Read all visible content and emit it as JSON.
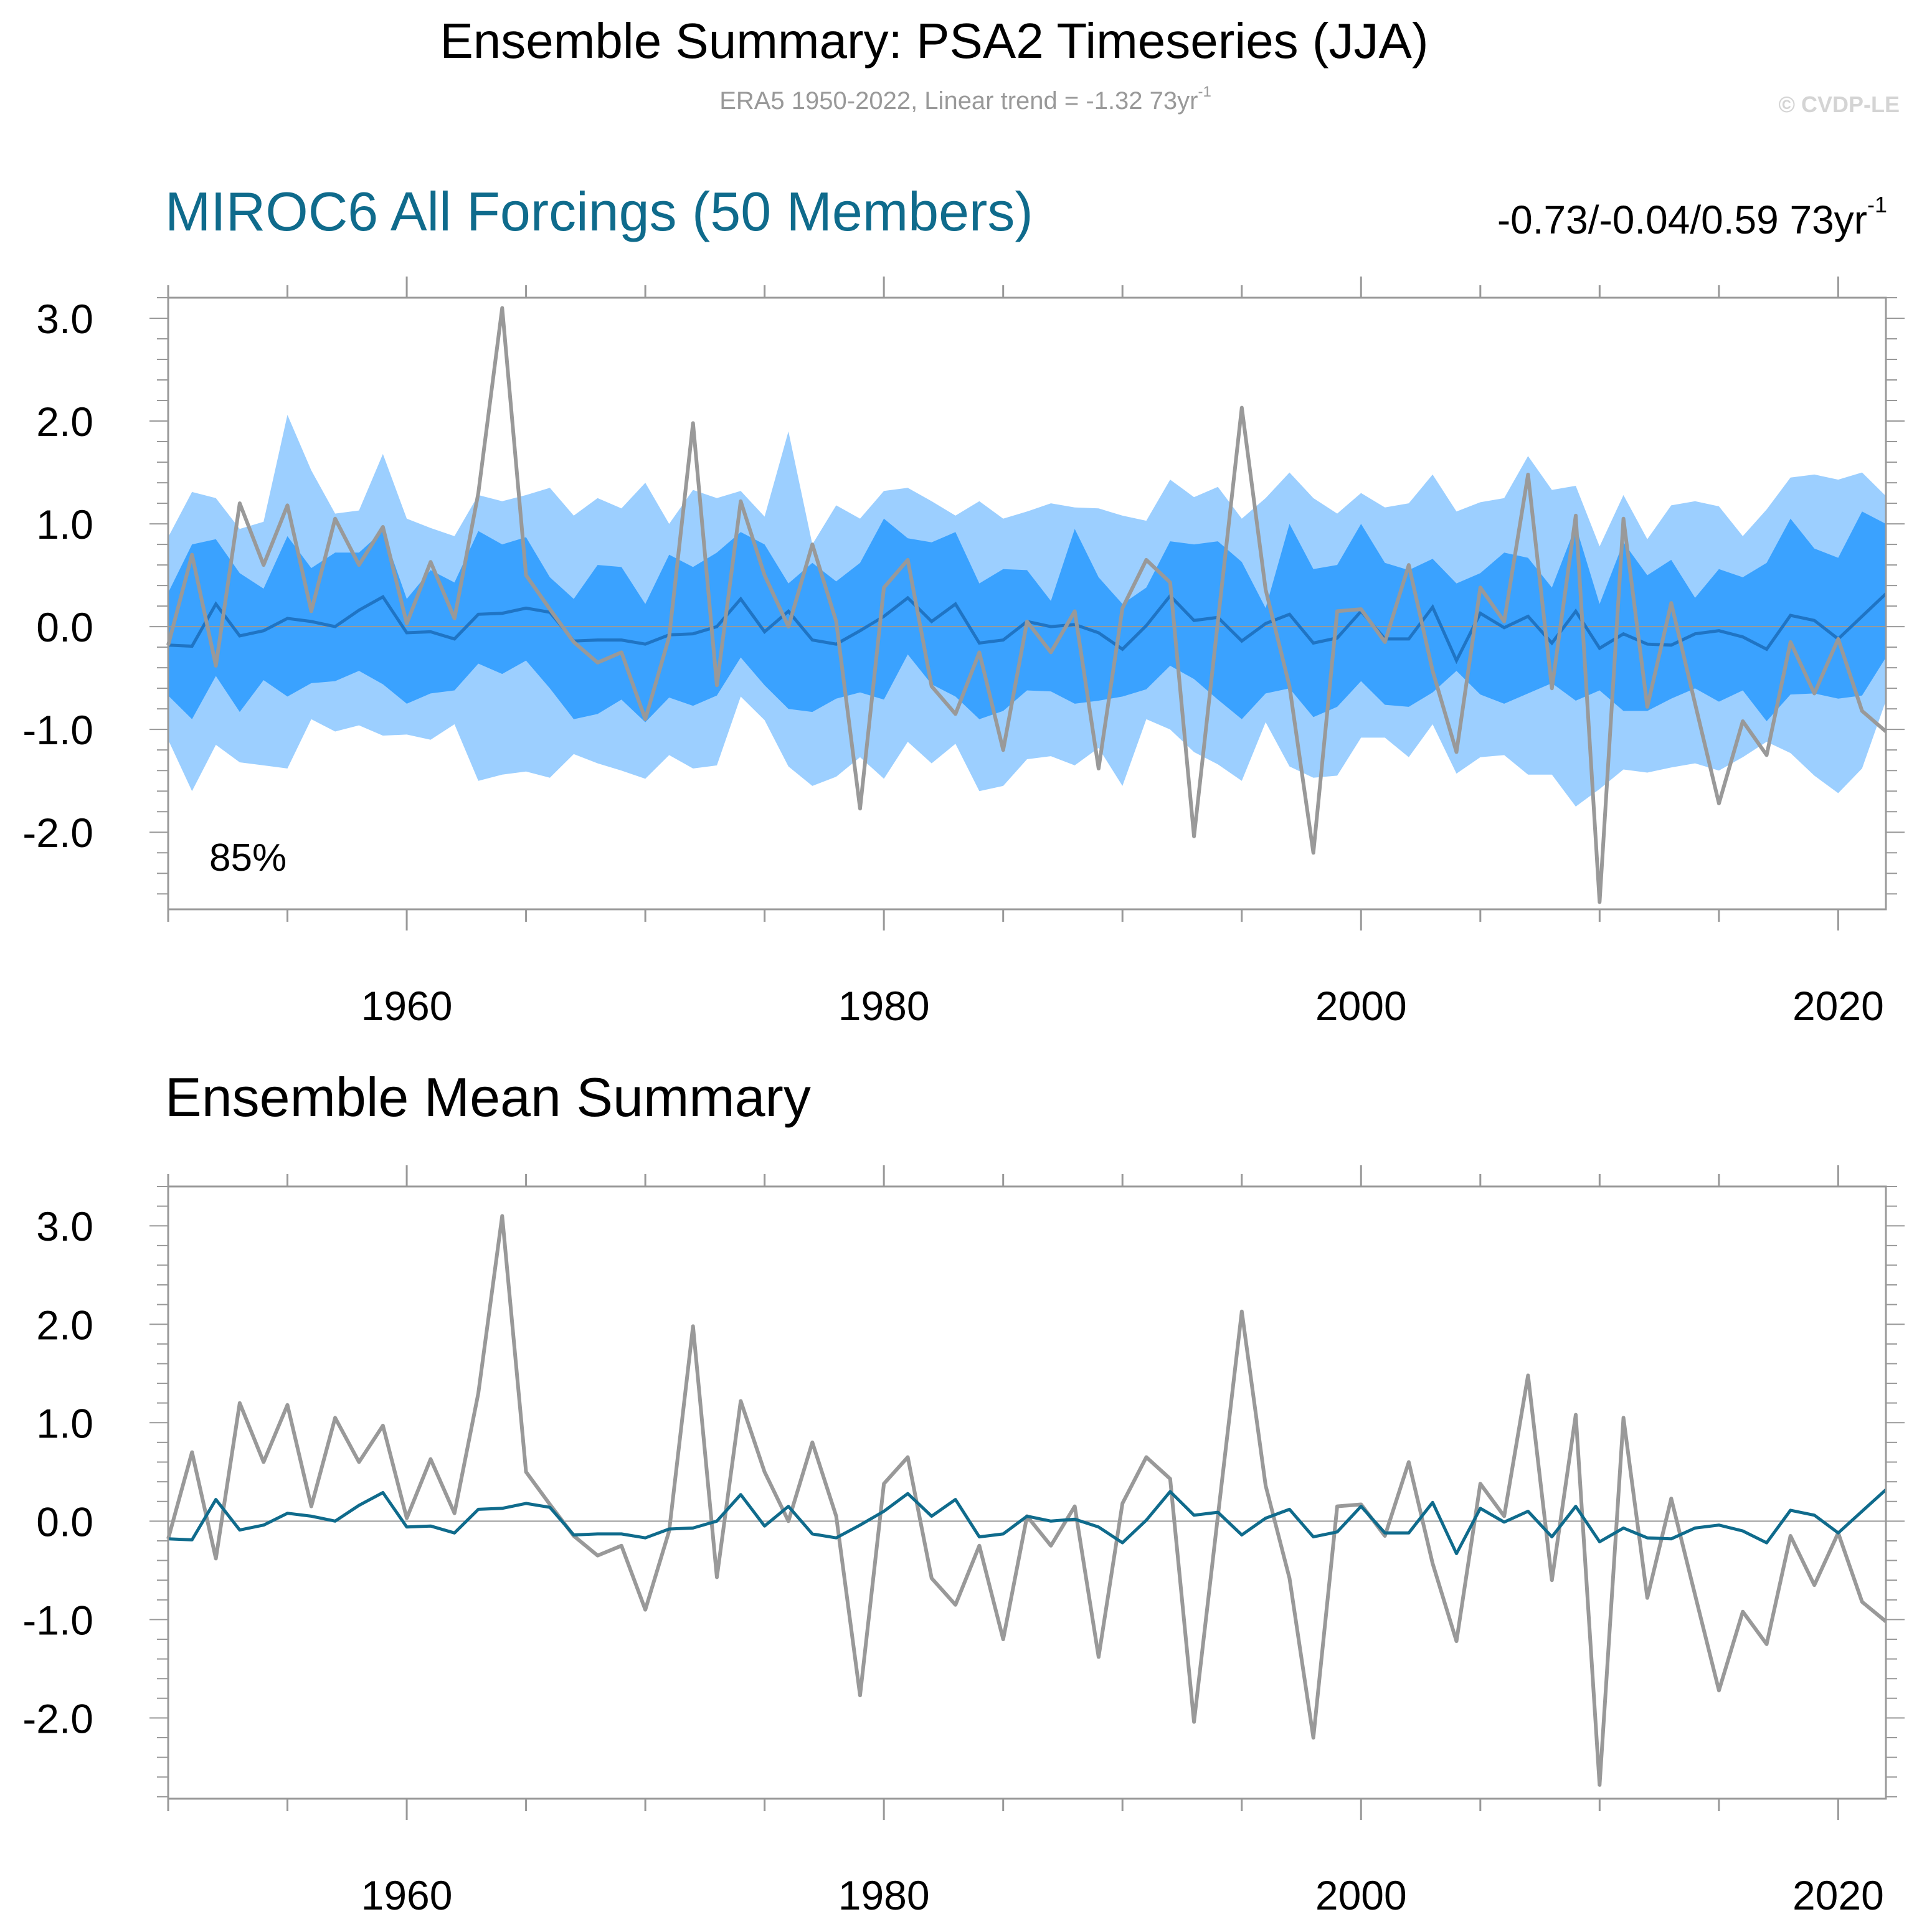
{
  "header": {
    "title": "Ensemble Summary: PSA2 Timeseries (JJA)",
    "subtitle_main": "ERA5 1950-2022, Linear trend = -1.32 73yr",
    "subtitle_sup": "-1",
    "copyright": "© CVDP-LE"
  },
  "panel_top": {
    "title": "MIROC6 All Forcings (50 Members)",
    "trend_main": "-0.73/-0.04/0.59 73yr",
    "trend_sup": "-1",
    "percent_label": "85%"
  },
  "panel_bottom": {
    "title": "Ensemble Mean Summary"
  },
  "colors": {
    "obs_line": "#999999",
    "mean_line_top": "#1f74c4",
    "mean_line_bottom": "#0f6b8c",
    "band_outer": "#9ccfff",
    "band_inner": "#3aa2ff",
    "zero_line": "#9a9a9a",
    "axis": "#999999"
  },
  "chart_data": [
    {
      "type": "line",
      "title": "MIROC6 All Forcings (50 Members)",
      "x_start": 1950,
      "x_end": 2022,
      "xlim": [
        1950,
        2022
      ],
      "ylim": [
        -2.75,
        3.2
      ],
      "x_ticks": [
        1960,
        1980,
        2000,
        2020
      ],
      "x_tick_labels": [
        "1960",
        "1980",
        "2000",
        "2020"
      ],
      "y_ticks": [
        3.0,
        2.0,
        1.0,
        0.0,
        -1.0,
        -2.0
      ],
      "y_tick_labels": [
        "3.0",
        "2.0",
        "1.0",
        "0.0",
        "-1.0",
        "-2.0"
      ],
      "series": [
        {
          "name": "ERA5",
          "values": [
            -0.18,
            0.7,
            -0.38,
            1.2,
            0.6,
            1.18,
            0.15,
            1.05,
            0.6,
            0.97,
            0.03,
            0.63,
            0.08,
            1.3,
            3.1,
            0.5,
            0.17,
            -0.15,
            -0.35,
            -0.25,
            -0.9,
            -0.1,
            1.98,
            -0.57,
            1.22,
            0.5,
            0.0,
            0.8,
            0.05,
            -1.77,
            0.38,
            0.65,
            -0.58,
            -0.85,
            -0.25,
            -1.2,
            0.05,
            -0.25,
            0.15,
            -1.38,
            0.18,
            0.65,
            0.43,
            -2.04,
            0.05,
            2.13,
            0.36,
            -0.58,
            -2.2,
            0.15,
            0.17,
            -0.15,
            0.6,
            -0.43,
            -1.22,
            0.38,
            0.05,
            1.48,
            -0.6,
            1.08,
            -2.68,
            1.05,
            -0.78,
            0.23,
            -0.75,
            -1.72,
            -0.92,
            -1.25,
            -0.15,
            -0.65,
            -0.12,
            -0.82,
            -1.02
          ]
        },
        {
          "name": "Ensemble mean",
          "values": [
            -0.18,
            -0.19,
            0.22,
            -0.09,
            -0.04,
            0.08,
            0.05,
            0.0,
            0.16,
            0.29,
            -0.06,
            -0.05,
            -0.12,
            0.12,
            0.13,
            0.18,
            0.14,
            -0.14,
            -0.13,
            -0.13,
            -0.17,
            -0.08,
            -0.07,
            0.0,
            0.27,
            -0.05,
            0.15,
            -0.13,
            -0.17,
            -0.04,
            0.1,
            0.28,
            0.05,
            0.22,
            -0.16,
            -0.13,
            0.05,
            0.0,
            0.02,
            -0.06,
            -0.22,
            0.01,
            0.3,
            0.06,
            0.09,
            -0.14,
            0.03,
            0.12,
            -0.16,
            -0.11,
            0.15,
            -0.12,
            -0.12,
            0.19,
            -0.33,
            0.13,
            -0.01,
            0.1,
            -0.16,
            0.15,
            -0.21,
            -0.07,
            -0.17,
            -0.18,
            -0.07,
            -0.04,
            -0.1,
            -0.22,
            0.11,
            0.06,
            -0.12,
            0.1,
            0.32
          ]
        }
      ],
      "bands": [
        {
          "name": "Ensemble range (outer)",
          "upper": [
            0.87,
            1.31,
            1.25,
            0.95,
            1.02,
            2.06,
            1.52,
            1.1,
            1.13,
            1.68,
            1.05,
            0.96,
            0.88,
            1.28,
            1.22,
            1.28,
            1.35,
            1.08,
            1.25,
            1.15,
            1.4,
            1.0,
            1.33,
            1.25,
            1.32,
            1.07,
            1.9,
            0.8,
            1.18,
            1.05,
            1.32,
            1.35,
            1.22,
            1.08,
            1.22,
            1.05,
            1.12,
            1.2,
            1.16,
            1.15,
            1.08,
            1.03,
            1.43,
            1.26,
            1.36,
            1.05,
            1.25,
            1.5,
            1.25,
            1.1,
            1.3,
            1.16,
            1.2,
            1.48,
            1.12,
            1.21,
            1.25,
            1.66,
            1.33,
            1.37,
            0.78,
            1.28,
            0.85,
            1.18,
            1.22,
            1.17,
            0.88,
            1.14,
            1.45,
            1.48,
            1.43,
            1.5,
            1.27
          ],
          "lower": [
            -1.1,
            -1.6,
            -1.15,
            -1.32,
            -1.35,
            -1.38,
            -0.9,
            -1.02,
            -0.96,
            -1.06,
            -1.05,
            -1.1,
            -0.95,
            -1.5,
            -1.44,
            -1.41,
            -1.47,
            -1.24,
            -1.33,
            -1.4,
            -1.48,
            -1.25,
            -1.38,
            -1.35,
            -0.68,
            -0.91,
            -1.36,
            -1.55,
            -1.46,
            -1.27,
            -1.48,
            -1.12,
            -1.33,
            -1.14,
            -1.6,
            -1.55,
            -1.29,
            -1.26,
            -1.35,
            -1.18,
            -1.55,
            -0.9,
            -1.0,
            -1.22,
            -1.34,
            -1.5,
            -0.93,
            -1.36,
            -1.47,
            -1.45,
            -1.08,
            -1.08,
            -1.27,
            -0.95,
            -1.43,
            -1.27,
            -1.25,
            -1.44,
            -1.44,
            -1.75,
            -1.58,
            -1.39,
            -1.42,
            -1.37,
            -1.33,
            -1.4,
            -1.27,
            -1.12,
            -1.23,
            -1.45,
            -1.62,
            -1.38,
            -0.72
          ]
        },
        {
          "name": "Ensemble interquartile (inner)",
          "upper": [
            0.33,
            0.8,
            0.85,
            0.52,
            0.37,
            0.88,
            0.57,
            0.72,
            0.72,
            0.93,
            0.27,
            0.55,
            0.43,
            0.93,
            0.8,
            0.87,
            0.48,
            0.27,
            0.6,
            0.58,
            0.22,
            0.7,
            0.58,
            0.72,
            0.92,
            0.8,
            0.42,
            0.62,
            0.44,
            0.62,
            1.05,
            0.86,
            0.82,
            0.92,
            0.42,
            0.56,
            0.55,
            0.25,
            0.95,
            0.48,
            0.22,
            0.38,
            0.83,
            0.8,
            0.83,
            0.63,
            0.18,
            1.0,
            0.56,
            0.6,
            1.0,
            0.62,
            0.55,
            0.66,
            0.42,
            0.52,
            0.72,
            0.67,
            0.38,
            0.98,
            0.22,
            0.82,
            0.5,
            0.65,
            0.28,
            0.56,
            0.48,
            0.62,
            1.05,
            0.76,
            0.67,
            1.12,
            1.0
          ],
          "lower": [
            -0.67,
            -0.9,
            -0.48,
            -0.83,
            -0.52,
            -0.68,
            -0.55,
            -0.53,
            -0.43,
            -0.56,
            -0.75,
            -0.65,
            -0.62,
            -0.36,
            -0.46,
            -0.33,
            -0.6,
            -0.9,
            -0.85,
            -0.71,
            -0.93,
            -0.69,
            -0.77,
            -0.67,
            -0.3,
            -0.57,
            -0.8,
            -0.83,
            -0.7,
            -0.64,
            -0.71,
            -0.27,
            -0.56,
            -0.68,
            -0.9,
            -0.82,
            -0.62,
            -0.63,
            -0.75,
            -0.72,
            -0.68,
            -0.61,
            -0.38,
            -0.51,
            -0.71,
            -0.9,
            -0.65,
            -0.6,
            -0.88,
            -0.78,
            -0.53,
            -0.76,
            -0.78,
            -0.64,
            -0.43,
            -0.66,
            -0.75,
            -0.65,
            -0.55,
            -0.72,
            -0.62,
            -0.82,
            -0.82,
            -0.7,
            -0.6,
            -0.73,
            -0.62,
            -0.92,
            -0.66,
            -0.65,
            -0.7,
            -0.67,
            -0.3
          ]
        }
      ]
    },
    {
      "type": "line",
      "title": "Ensemble Mean Summary",
      "x_start": 1950,
      "x_end": 2022,
      "xlim": [
        1950,
        2022
      ],
      "ylim": [
        -2.82,
        3.4
      ],
      "x_ticks": [
        1960,
        1980,
        2000,
        2020
      ],
      "x_tick_labels": [
        "1960",
        "1980",
        "2000",
        "2020"
      ],
      "y_ticks": [
        3.0,
        2.0,
        1.0,
        0.0,
        -1.0,
        -2.0
      ],
      "y_tick_labels": [
        "3.0",
        "2.0",
        "1.0",
        "0.0",
        "-1.0",
        "-2.0"
      ],
      "series_ref": "same series as panel 1 (ERA5 and ensemble mean)"
    }
  ]
}
